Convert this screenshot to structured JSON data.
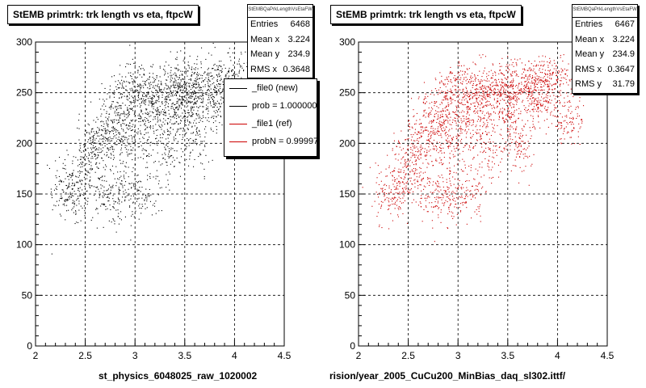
{
  "panels": [
    {
      "title": "StEMB primtrk: trk length vs eta, ftpcW",
      "xlabel": "st_physics_6048025_raw_1020002",
      "stats": {
        "name": "StEMBQaPrkLengthVsEtaFW",
        "rows": [
          {
            "label": "Entries",
            "value": "6468"
          },
          {
            "label": "Mean x",
            "value": "3.224"
          },
          {
            "label": "Mean y",
            "value": "234.9"
          },
          {
            "label": "RMS x",
            "value": "0.3648"
          },
          {
            "label": "RMS y",
            "value": ""
          }
        ]
      },
      "legend": [
        {
          "label": "_file0 (new)",
          "color": "#000000"
        },
        {
          "label": "prob = 1.000000",
          "color": "#000000"
        },
        {
          "label": "_file1 (ref)",
          "color": "#cc0000"
        },
        {
          "label": "probN = 0.999970",
          "color": "#cc0000"
        }
      ]
    },
    {
      "title": "StEMB primtrk: trk length vs eta, ftpcW",
      "xlabel": "rision/year_2005_CuCu200_MinBias_daq_sl302.ittf/",
      "stats": {
        "name": "StEMBQaPrkLengthVsEtaFW",
        "rows": [
          {
            "label": "Entries",
            "value": "6467"
          },
          {
            "label": "Mean x",
            "value": "3.224"
          },
          {
            "label": "Mean y",
            "value": "234.9"
          },
          {
            "label": "RMS x",
            "value": "0.3647"
          },
          {
            "label": "RMS y",
            "value": "31.79"
          }
        ]
      }
    }
  ],
  "footer": "",
  "chart_data": [
    {
      "type": "scatter",
      "title": "StEMB primtrk: trk length vs eta, ftpcW",
      "xlabel": "st_physics_6048025_raw_1020002",
      "ylabel": "",
      "xlim": [
        2,
        4.5
      ],
      "ylim": [
        0,
        300
      ],
      "xticks": [
        2,
        2.5,
        3,
        3.5,
        4,
        4.5
      ],
      "xtick_labels": [
        "2",
        "2.5",
        "3",
        "3.5",
        "4",
        "4.5"
      ],
      "yticks": [
        0,
        50,
        100,
        150,
        200,
        250,
        300
      ],
      "ytick_labels": [
        "0",
        "50",
        "100",
        "150",
        "200",
        "250",
        "300"
      ],
      "grid": true,
      "color": "#000000",
      "entries": 6468,
      "mean_x": 3.224,
      "mean_y": 234.9,
      "rms_x": 0.3648,
      "density_points": [
        [
          2.8,
          230
        ],
        [
          2.9,
          245
        ],
        [
          3.0,
          255
        ],
        [
          3.1,
          250
        ],
        [
          3.2,
          245
        ],
        [
          3.3,
          255
        ],
        [
          3.4,
          250
        ],
        [
          3.5,
          255
        ],
        [
          3.6,
          250
        ],
        [
          3.7,
          260
        ],
        [
          3.8,
          255
        ],
        [
          3.9,
          260
        ],
        [
          4.0,
          265
        ],
        [
          2.6,
          200
        ],
        [
          2.7,
          215
        ],
        [
          2.5,
          180
        ],
        [
          2.4,
          160
        ],
        [
          2.3,
          150
        ],
        [
          2.85,
          200
        ],
        [
          3.0,
          210
        ],
        [
          3.2,
          220
        ],
        [
          3.5,
          230
        ],
        [
          3.8,
          240
        ],
        [
          2.9,
          150
        ],
        [
          3.1,
          150
        ],
        [
          2.7,
          150
        ],
        [
          3.3,
          190
        ],
        [
          3.6,
          200
        ],
        [
          4.1,
          225
        ]
      ]
    },
    {
      "type": "scatter",
      "title": "StEMB primtrk: trk length vs eta, ftpcW",
      "xlabel": "rision/year_2005_CuCu200_MinBias_daq_sl302.ittf/",
      "ylabel": "",
      "xlim": [
        2,
        4.5
      ],
      "ylim": [
        0,
        300
      ],
      "xticks": [
        2,
        2.5,
        3,
        3.5,
        4,
        4.5
      ],
      "xtick_labels": [
        "2",
        "2.5",
        "3",
        "3.5",
        "4",
        "4.5"
      ],
      "yticks": [
        0,
        50,
        100,
        150,
        200,
        250,
        300
      ],
      "ytick_labels": [
        "0",
        "50",
        "100",
        "150",
        "200",
        "250",
        "300"
      ],
      "grid": true,
      "color": "#cc0000",
      "entries": 6467,
      "mean_x": 3.224,
      "mean_y": 234.9,
      "rms_x": 0.3647,
      "rms_y": 31.79,
      "density_points": [
        [
          2.8,
          230
        ],
        [
          2.9,
          245
        ],
        [
          3.0,
          255
        ],
        [
          3.1,
          250
        ],
        [
          3.2,
          245
        ],
        [
          3.3,
          255
        ],
        [
          3.4,
          250
        ],
        [
          3.5,
          255
        ],
        [
          3.6,
          250
        ],
        [
          3.7,
          260
        ],
        [
          3.8,
          255
        ],
        [
          3.9,
          260
        ],
        [
          4.0,
          265
        ],
        [
          2.6,
          200
        ],
        [
          2.7,
          215
        ],
        [
          2.5,
          180
        ],
        [
          2.4,
          160
        ],
        [
          2.3,
          150
        ],
        [
          2.85,
          200
        ],
        [
          3.0,
          210
        ],
        [
          3.2,
          220
        ],
        [
          3.5,
          230
        ],
        [
          3.8,
          240
        ],
        [
          2.9,
          150
        ],
        [
          3.1,
          150
        ],
        [
          2.7,
          150
        ],
        [
          3.3,
          190
        ],
        [
          3.6,
          200
        ],
        [
          4.1,
          225
        ]
      ]
    }
  ]
}
